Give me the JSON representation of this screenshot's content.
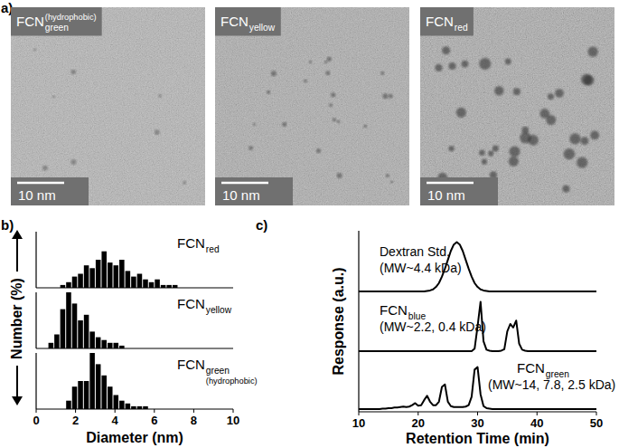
{
  "panel_a": {
    "label": "a)",
    "images": [
      {
        "label": "FCN",
        "label_sub": "green",
        "label_note": "(hydrophobic)",
        "scale_bar": "10 nm"
      },
      {
        "label": "FCN",
        "label_sub": "yellow",
        "scale_bar": "10 nm"
      },
      {
        "label": "FCN",
        "label_sub": "red",
        "scale_bar": "10 nm"
      }
    ]
  },
  "chart_data": [
    {
      "type": "histogram",
      "panel_label": "b)",
      "xlabel": "Diameter (nm)",
      "ylabel": "Number (%)",
      "xlim": [
        0,
        10
      ],
      "xticks": [
        0,
        2,
        4,
        6,
        8,
        10
      ],
      "ylim": [
        0,
        20
      ],
      "tick_labels": "x",
      "grid": false,
      "color": "#000000",
      "series": [
        {
          "name": "FCN",
          "name_sub": "red",
          "bins": [
            1.2,
            1.5,
            1.8,
            2.1,
            2.4,
            2.7,
            3,
            3.3,
            3.6,
            3.9,
            4.2,
            4.5,
            4.8,
            5.1,
            5.4,
            5.7,
            6,
            6.3,
            6.6,
            6.9,
            7.2
          ],
          "values": [
            1,
            2,
            4,
            5,
            8,
            7,
            10,
            13,
            9,
            8,
            10,
            6,
            4,
            5,
            3,
            2,
            3,
            1,
            1,
            1
          ]
        },
        {
          "name": "FCN",
          "name_sub": "yellow",
          "bins": [
            0.6,
            0.9,
            1.2,
            1.5,
            1.8,
            2.1,
            2.4,
            2.7,
            3,
            3.3,
            3.6,
            3.9,
            4.2,
            4.5
          ],
          "values": [
            2,
            5,
            14,
            20,
            16,
            10,
            12,
            6,
            4,
            3,
            2,
            2,
            1
          ]
        },
        {
          "name": "FCN",
          "name_sub": "green",
          "note": "(hydrophobic)",
          "bins": [
            1.5,
            1.8,
            2.1,
            2.4,
            2.7,
            3,
            3.3,
            3.6,
            3.9,
            4.2,
            4.5,
            4.8,
            5.1,
            5.4,
            5.7
          ],
          "values": [
            3,
            8,
            10,
            10,
            20,
            16,
            12,
            8,
            5,
            3,
            2,
            1,
            1,
            1
          ]
        }
      ]
    },
    {
      "type": "line",
      "panel_label": "c)",
      "xlabel": "Retention Time (min)",
      "ylabel": "Response (a.u.)",
      "xlim": [
        10,
        50
      ],
      "xticks": [
        10,
        20,
        30,
        40,
        50
      ],
      "ylim": [
        0,
        1.1
      ],
      "tick_labels": "x",
      "grid": false,
      "color": "#000000",
      "x": [
        10,
        10.5,
        11,
        11.5,
        12,
        12.5,
        13,
        13.5,
        14,
        14.5,
        15,
        15.5,
        16,
        16.5,
        17,
        17.5,
        18,
        18.5,
        19,
        19.5,
        20,
        20.5,
        21,
        21.5,
        22,
        22.5,
        23,
        23.5,
        24,
        24.5,
        25,
        25.5,
        26,
        26.5,
        27,
        27.5,
        28,
        28.5,
        29,
        29.5,
        30,
        30.5,
        31,
        31.5,
        32,
        32.5,
        33,
        33.5,
        34,
        34.5,
        35,
        35.5,
        36,
        36.5,
        37,
        37.5,
        38,
        38.5,
        39,
        39.5,
        40,
        40.5,
        41,
        41.5,
        42,
        42.5,
        43,
        43.5,
        44,
        44.5,
        45,
        45.5,
        46,
        46.5,
        47,
        47.5,
        48,
        48.5,
        49,
        49.5,
        50
      ],
      "series": [
        {
          "name": "Dextran Std.",
          "note": "(MW~4.4 kDa)",
          "values": [
            0,
            0,
            0,
            0,
            0,
            0,
            0,
            0,
            0,
            0,
            0,
            0,
            0,
            0,
            0,
            0,
            0,
            0,
            0,
            0,
            0,
            0,
            0,
            0.01,
            0.02,
            0.04,
            0.09,
            0.17,
            0.3,
            0.46,
            0.64,
            0.82,
            0.95,
            1.0,
            0.95,
            0.82,
            0.64,
            0.46,
            0.3,
            0.17,
            0.09,
            0.04,
            0.02,
            0.01,
            0,
            0,
            0,
            0,
            0,
            0,
            0,
            0,
            0,
            0,
            0,
            0,
            0,
            0,
            0,
            0,
            0,
            0,
            0,
            0,
            0,
            0,
            0,
            0,
            0,
            0,
            0,
            0,
            0,
            0,
            0,
            0,
            0,
            0,
            0,
            0,
            0
          ]
        },
        {
          "name": "FCN",
          "name_sub": "blue",
          "note": "(MW~2.2, 0.4 kDa)",
          "values": [
            0,
            0,
            0,
            0,
            0,
            0,
            0,
            0,
            0,
            0,
            0,
            0,
            0,
            0,
            0,
            0,
            0,
            0,
            0,
            0,
            0,
            0,
            0,
            0,
            0,
            0,
            0,
            0,
            0,
            0,
            0,
            0,
            0,
            0,
            0,
            0,
            0,
            0,
            0,
            0.05,
            0.5,
            1.0,
            0.2,
            0.03,
            0.01,
            0,
            0,
            0,
            0.01,
            0.04,
            0.4,
            0.55,
            0.48,
            0.62,
            0.15,
            0.03,
            0.01,
            0,
            0,
            0,
            0,
            0,
            0,
            0,
            0,
            0,
            0,
            0,
            0,
            0,
            0,
            0,
            0,
            0,
            0,
            0,
            0,
            0,
            0,
            0,
            0
          ]
        },
        {
          "name": "FCN",
          "name_sub": "green",
          "note": "(MW~14, 7.8, 2.5 kDa)",
          "values": [
            0,
            0,
            0,
            0,
            0,
            0,
            0,
            0,
            0.01,
            0.01,
            0.02,
            0.02,
            0.03,
            0.03,
            0.04,
            0.05,
            0.04,
            0.05,
            0.08,
            0.12,
            0.07,
            0.08,
            0.18,
            0.27,
            0.15,
            0.08,
            0.08,
            0.15,
            0.45,
            0.5,
            0.15,
            0.06,
            0.04,
            0.04,
            0.04,
            0.04,
            0.05,
            0.08,
            0.25,
            0.8,
            0.85,
            0.3,
            0.06,
            0.02,
            0.01,
            0,
            0,
            0,
            0,
            0,
            0,
            0,
            0,
            0,
            0,
            0,
            0,
            0,
            0,
            0,
            0,
            0,
            0,
            0,
            0,
            0,
            0,
            0,
            0,
            0,
            0,
            0,
            0,
            0,
            0,
            0,
            0,
            0,
            0,
            0,
            0
          ]
        }
      ]
    }
  ]
}
